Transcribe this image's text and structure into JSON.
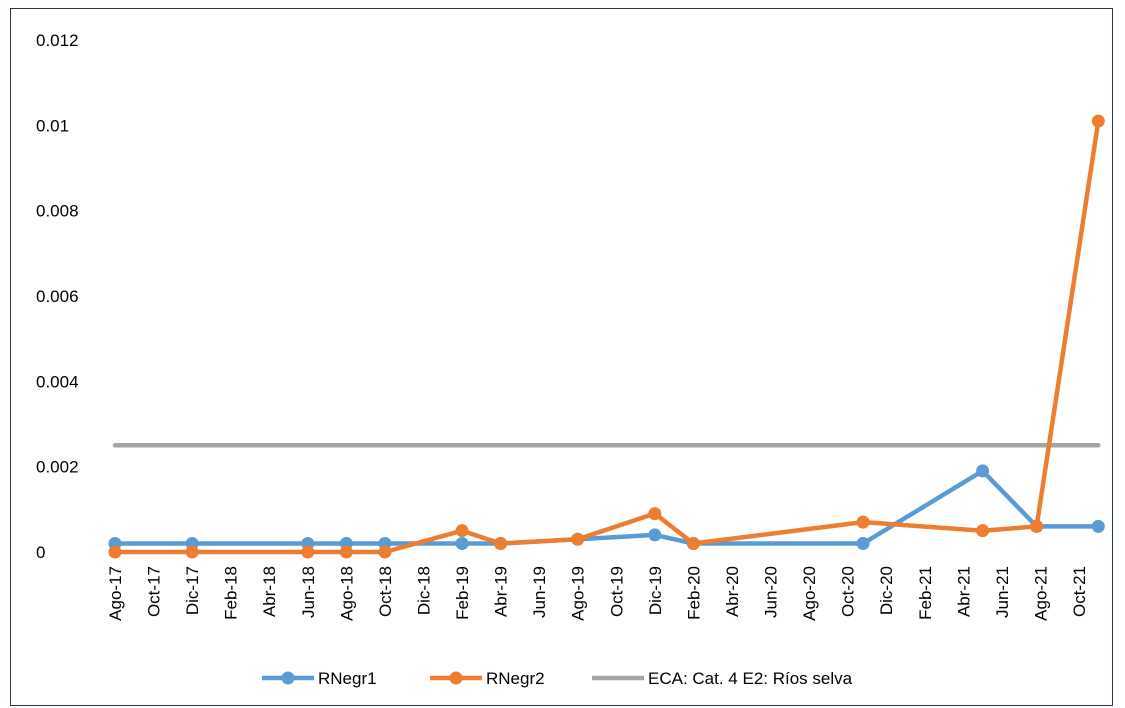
{
  "chart_data": {
    "type": "line",
    "x_categories": [
      "Ago-17",
      "Oct-17",
      "Dic-17",
      "Feb-18",
      "Abr-18",
      "Jun-18",
      "Ago-18",
      "Oct-18",
      "Dic-18",
      "Feb-19",
      "Abr-19",
      "Jun-19",
      "Ago-19",
      "Oct-19",
      "Dic-19",
      "Feb-20",
      "Abr-20",
      "Jun-20",
      "Ago-20",
      "Oct-20",
      "Dic-20",
      "Feb-21",
      "Abr-21",
      "Jun-21",
      "Ago-21",
      "Oct-21"
    ],
    "ylim": [
      0,
      0.012
    ],
    "y_ticks": [
      0,
      0.002,
      0.004,
      0.006,
      0.008,
      0.01,
      0.012
    ],
    "y_tick_labels": [
      "0",
      "0.002",
      "0.004",
      "0.006",
      "0.008",
      "0.01",
      "0.012"
    ],
    "grid": false,
    "legend_position": "bottom",
    "series": [
      {
        "name": "RNegr1",
        "color": "#5b9bd5",
        "marker": true,
        "points": [
          {
            "x": 0.0,
            "y": 0.0002
          },
          {
            "x": 2.0,
            "y": 0.0002
          },
          {
            "x": 5.0,
            "y": 0.0002
          },
          {
            "x": 6.0,
            "y": 0.0002
          },
          {
            "x": 7.0,
            "y": 0.0002
          },
          {
            "x": 9.0,
            "y": 0.0002
          },
          {
            "x": 10.0,
            "y": 0.0002
          },
          {
            "x": 12.0,
            "y": 0.0003
          },
          {
            "x": 14.0,
            "y": 0.0004
          },
          {
            "x": 15.0,
            "y": 0.0002
          },
          {
            "x": 19.4,
            "y": 0.0002
          },
          {
            "x": 22.5,
            "y": 0.0019
          },
          {
            "x": 23.9,
            "y": 0.0006
          },
          {
            "x": 25.5,
            "y": 0.0006
          }
        ]
      },
      {
        "name": "RNegr2",
        "color": "#ed7d31",
        "marker": true,
        "points": [
          {
            "x": 0.0,
            "y": 0.0
          },
          {
            "x": 2.0,
            "y": 0.0
          },
          {
            "x": 5.0,
            "y": 0.0
          },
          {
            "x": 6.0,
            "y": 0.0
          },
          {
            "x": 7.0,
            "y": 0.0
          },
          {
            "x": 9.0,
            "y": 0.0005
          },
          {
            "x": 10.0,
            "y": 0.0002
          },
          {
            "x": 12.0,
            "y": 0.0003
          },
          {
            "x": 14.0,
            "y": 0.0009
          },
          {
            "x": 15.0,
            "y": 0.0002
          },
          {
            "x": 19.4,
            "y": 0.0007
          },
          {
            "x": 22.5,
            "y": 0.0005
          },
          {
            "x": 23.9,
            "y": 0.0006
          },
          {
            "x": 25.5,
            "y": 0.0101
          }
        ]
      },
      {
        "name": "ECA: Cat. 4  E2: Ríos selva",
        "color": "#a5a5a5",
        "marker": false,
        "points": [
          {
            "x": 0.0,
            "y": 0.0025
          },
          {
            "x": 25.5,
            "y": 0.0025
          }
        ]
      }
    ]
  }
}
